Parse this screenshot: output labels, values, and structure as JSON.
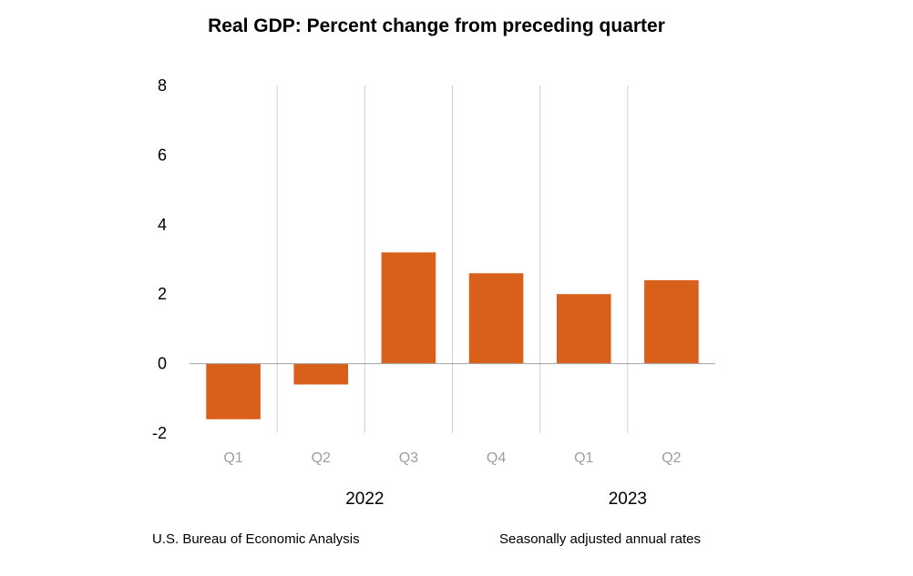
{
  "chart_data": {
    "type": "bar",
    "title": "Real GDP:  Percent change from preceding quarter",
    "categories": [
      "Q1",
      "Q2",
      "Q3",
      "Q4",
      "Q1",
      "Q2"
    ],
    "category_groups": [
      {
        "label": "2022",
        "members": [
          0,
          1,
          2,
          3
        ]
      },
      {
        "label": "2023",
        "members": [
          4,
          5
        ]
      }
    ],
    "series": [
      {
        "name": "Real GDP percent change",
        "values": [
          -1.6,
          -0.6,
          3.2,
          2.6,
          2.0,
          2.4
        ],
        "color": "#d9601b"
      }
    ],
    "ylim": [
      -2,
      8
    ],
    "yticks": [
      -2,
      0,
      2,
      4,
      6,
      8
    ],
    "xlabel": "",
    "ylabel": "",
    "grid": "vertical separators between categories"
  },
  "footer": {
    "source": "U.S. Bureau of Economic Analysis",
    "note": "Seasonally adjusted annual rates"
  },
  "colors": {
    "bar": "#d9601b",
    "separator": "#d0d0d0",
    "axis": "#a0a0a0",
    "tick_label_muted": "#9e9e9e"
  }
}
